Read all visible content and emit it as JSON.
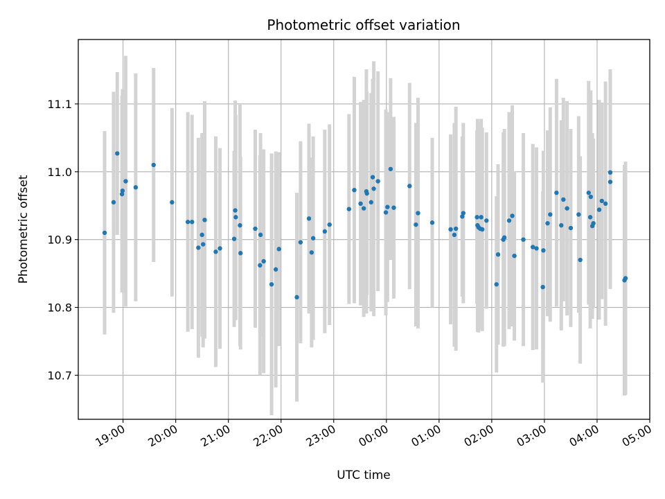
{
  "chart_data": {
    "type": "scatter",
    "title": "Photometric offset variation",
    "xlabel": "UTC time",
    "ylabel": "Photometric offset",
    "grid": true,
    "x_unit": "hours since 19:00 UTC",
    "xlim": [
      -0.85,
      10.0
    ],
    "ylim": [
      10.635,
      11.195
    ],
    "x_ticks": [
      {
        "value": 0,
        "label": "19:00"
      },
      {
        "value": 1,
        "label": "20:00"
      },
      {
        "value": 2,
        "label": "21:00"
      },
      {
        "value": 3,
        "label": "22:00"
      },
      {
        "value": 4,
        "label": "23:00"
      },
      {
        "value": 5,
        "label": "00:00"
      },
      {
        "value": 6,
        "label": "01:00"
      },
      {
        "value": 7,
        "label": "02:00"
      },
      {
        "value": 8,
        "label": "03:00"
      },
      {
        "value": 9,
        "label": "04:00"
      },
      {
        "value": 10,
        "label": "05:00"
      }
    ],
    "y_ticks": [
      {
        "value": 10.7,
        "label": "10.7"
      },
      {
        "value": 10.8,
        "label": "10.8"
      },
      {
        "value": 10.9,
        "label": "10.9"
      },
      {
        "value": 11.0,
        "label": "11.0"
      },
      {
        "value": 11.1,
        "label": "11.1"
      }
    ],
    "marker_color": "#1f77b4",
    "errorbar_color": "#d3d3d3",
    "series": [
      {
        "name": "offset",
        "x": [
          -0.35,
          -0.18,
          -0.11,
          -0.02,
          -0.01,
          0.05,
          0.24,
          0.58,
          0.93,
          1.23,
          1.31,
          1.43,
          1.5,
          1.52,
          1.55,
          1.76,
          1.84,
          2.11,
          2.13,
          2.14,
          2.22,
          2.23,
          2.51,
          2.6,
          2.61,
          2.67,
          2.82,
          2.9,
          2.96,
          3.3,
          3.37,
          3.53,
          3.58,
          3.61,
          3.83,
          3.92,
          4.29,
          4.39,
          4.51,
          4.57,
          4.62,
          4.63,
          4.71,
          4.74,
          4.76,
          4.84,
          4.99,
          5.02,
          5.08,
          5.14,
          5.44,
          5.56,
          5.6,
          5.87,
          6.22,
          6.29,
          6.32,
          6.44,
          6.46,
          6.72,
          6.73,
          6.75,
          6.78,
          6.8,
          6.82,
          6.9,
          7.09,
          7.12,
          7.22,
          7.24,
          7.33,
          7.39,
          7.43,
          7.6,
          7.78,
          7.85,
          7.97,
          7.98,
          8.06,
          8.11,
          8.23,
          8.32,
          8.36,
          8.43,
          8.5,
          8.65,
          8.68,
          8.84,
          8.87,
          8.88,
          8.91,
          8.93,
          9.04,
          9.09,
          9.16,
          9.25,
          9.25,
          9.52,
          9.54
        ],
        "y": [
          10.91,
          10.955,
          11.027,
          10.967,
          10.972,
          10.986,
          10.977,
          11.01,
          10.955,
          10.926,
          10.926,
          10.888,
          10.907,
          10.893,
          10.929,
          10.882,
          10.887,
          10.901,
          10.943,
          10.933,
          10.921,
          10.88,
          10.916,
          10.862,
          10.907,
          10.868,
          10.834,
          10.856,
          10.886,
          10.815,
          10.896,
          10.931,
          10.881,
          10.902,
          10.912,
          10.922,
          10.945,
          10.973,
          10.953,
          10.946,
          10.971,
          10.968,
          10.955,
          10.992,
          10.975,
          10.986,
          10.94,
          10.948,
          11.004,
          10.947,
          10.979,
          10.922,
          10.939,
          10.925,
          10.915,
          10.907,
          10.916,
          10.934,
          10.939,
          10.933,
          10.921,
          10.918,
          10.916,
          10.933,
          10.915,
          10.928,
          10.834,
          10.878,
          10.9,
          10.903,
          10.928,
          10.935,
          10.876,
          10.9,
          10.889,
          10.887,
          10.83,
          10.884,
          10.924,
          10.937,
          10.969,
          10.921,
          10.959,
          10.946,
          10.917,
          10.937,
          10.87,
          10.969,
          10.933,
          10.963,
          10.92,
          10.924,
          10.944,
          10.957,
          10.953,
          10.999,
          10.985,
          10.84,
          10.843
        ],
        "yerr": [
          0.15,
          0.163,
          0.12,
          0.145,
          0.15,
          0.185,
          0.168,
          0.143,
          0.139,
          0.162,
          0.158,
          0.162,
          0.15,
          0.152,
          0.175,
          0.17,
          0.148,
          0.13,
          0.162,
          0.151,
          0.178,
          0.142,
          0.146,
          0.162,
          0.15,
          0.165,
          0.193,
          0.174,
          0.143,
          0.154,
          0.149,
          0.14,
          0.14,
          0.15,
          0.15,
          0.148,
          0.14,
          0.167,
          0.15,
          0.16,
          0.18,
          0.15,
          0.161,
          0.145,
          0.188,
          0.162,
          0.152,
          0.14,
          0.134,
          0.134,
          0.152,
          0.15,
          0.17,
          0.125,
          0.14,
          0.165,
          0.18,
          0.118,
          0.133,
          0.128,
          0.157,
          0.155,
          0.148,
          0.145,
          0.15,
          0.13,
          0.13,
          0.133,
          0.158,
          0.16,
          0.16,
          0.163,
          0.125,
          0.157,
          0.152,
          0.149,
          0.141,
          0.147,
          0.137,
          0.158,
          0.168,
          0.155,
          0.15,
          0.158,
          0.146,
          0.145,
          0.153,
          0.165,
          0.164,
          0.157,
          0.137,
          0.125,
          0.162,
          0.145,
          0.18,
          0.152,
          0.158,
          0.17,
          0.172
        ]
      }
    ]
  }
}
